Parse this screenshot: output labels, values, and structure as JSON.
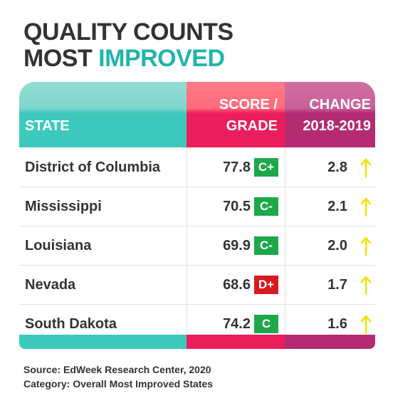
{
  "title": {
    "line1": "QUALITY COUNTS",
    "line2": "MOST",
    "line2_highlight": "IMPROVED"
  },
  "table": {
    "headers": {
      "state": "STATE",
      "score": [
        "SCORE /",
        "GRADE"
      ],
      "change": [
        "CHANGE",
        "2018-2019"
      ]
    },
    "rows": [
      {
        "state": "District of Columbia",
        "score": "77.8",
        "grade": "C+",
        "grade_color": "#1ea84a",
        "change": "2.8"
      },
      {
        "state": "Mississippi",
        "score": "70.5",
        "grade": "C-",
        "grade_color": "#1ea84a",
        "change": "2.1"
      },
      {
        "state": "Louisiana",
        "score": "69.9",
        "grade": "C-",
        "grade_color": "#1ea84a",
        "change": "2.0"
      },
      {
        "state": "Nevada",
        "score": "68.6",
        "grade": "D+",
        "grade_color": "#d71920",
        "change": "1.7"
      },
      {
        "state": "South Dakota",
        "score": "74.2",
        "grade": "C",
        "grade_color": "#1ea84a",
        "change": "1.6"
      }
    ]
  },
  "source": {
    "line1": "Source: EdWeek Research Center, 2020",
    "line2": "Category: Overall Most Improved States"
  }
}
